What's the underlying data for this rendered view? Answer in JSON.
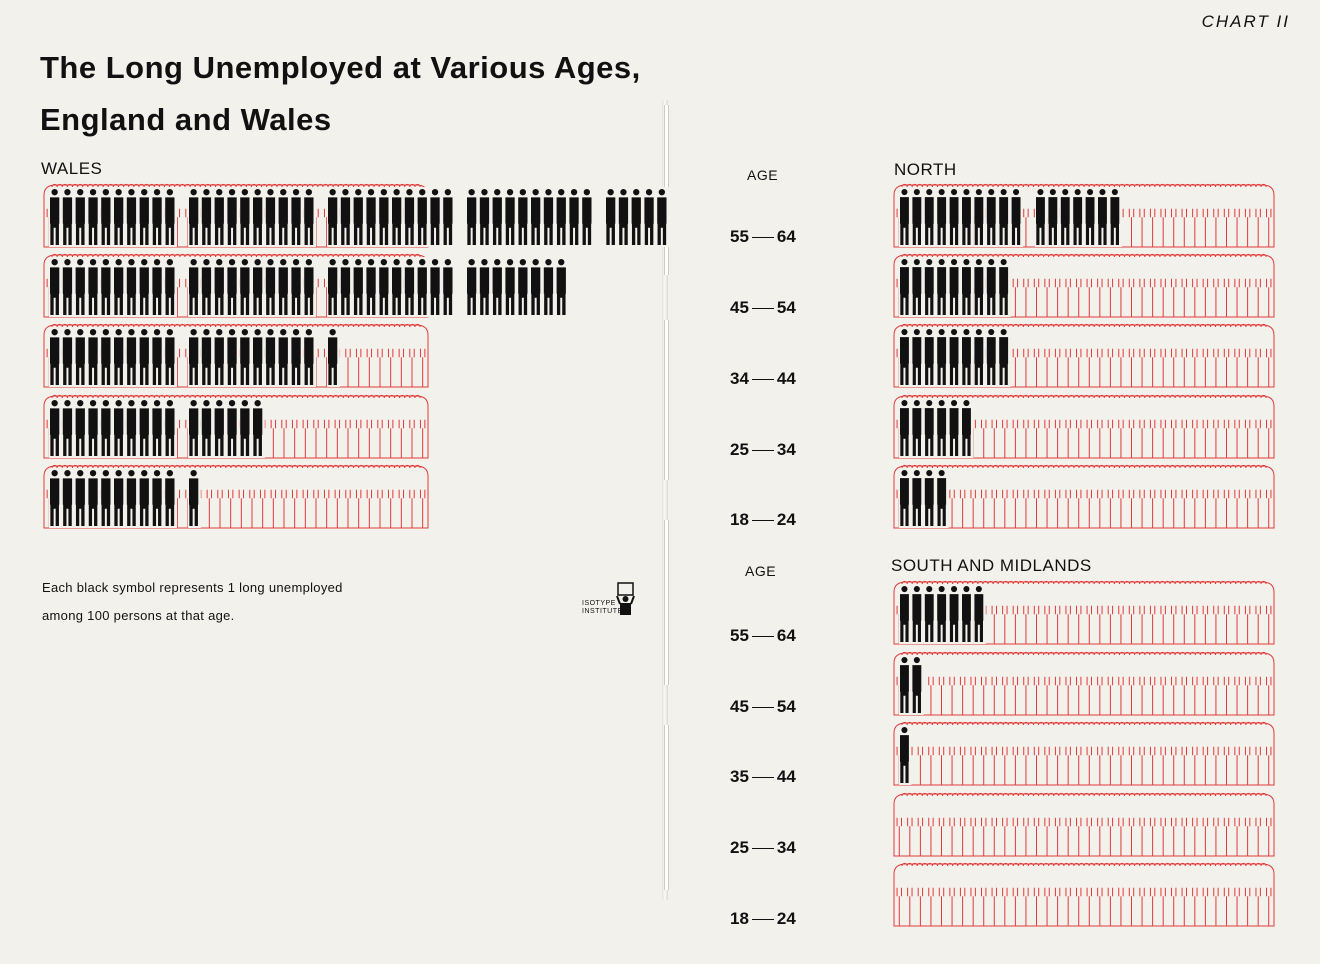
{
  "chart_label": "CHART II",
  "title_line1": "The Long Unemployed at Various Ages,",
  "title_line2": "England and Wales",
  "age_heading": "AGE",
  "age_heading_2": "AGE",
  "note_line1": "Each black symbol represents 1 long  unemployed",
  "note_line2": "among 100 persons at that age.",
  "logo_line1": "ISOTYPE",
  "logo_line2": "INSTITUTE",
  "colors": {
    "outline": "#e03a3a",
    "figure": "#111111",
    "paper": "#f3f1ec"
  },
  "chart_data": [
    {
      "type": "bar",
      "region": "WALES",
      "categories": [
        "55–64",
        "45–54",
        "34–44",
        "25–34",
        "18–24"
      ],
      "values": [
        45,
        38,
        21,
        16,
        11
      ],
      "unit": "long unemployed per 100 persons",
      "total_per_row": 100
    },
    {
      "type": "bar",
      "region": "NORTH",
      "categories": [
        "55–64",
        "45–54",
        "35–44",
        "25–34",
        "18–24"
      ],
      "values": [
        17,
        9,
        9,
        6,
        4
      ],
      "unit": "long unemployed per 100 persons",
      "total_per_row": 100
    },
    {
      "type": "bar",
      "region": "SOUTH AND MIDLANDS",
      "categories": [
        "55–64",
        "45–54",
        "35–44",
        "25–34",
        "18–24"
      ],
      "values": [
        7,
        2,
        1,
        0,
        0
      ],
      "unit": "long unemployed per 100 persons",
      "total_per_row": 100
    }
  ],
  "age_labels_upper": [
    {
      "from": "55",
      "to": "64"
    },
    {
      "from": "45",
      "to": "54"
    },
    {
      "from": "34",
      "to": "44"
    },
    {
      "from": "25",
      "to": "34"
    },
    {
      "from": "18",
      "to": "24"
    }
  ],
  "age_labels_lower": [
    {
      "from": "55",
      "to": "64"
    },
    {
      "from": "45",
      "to": "54"
    },
    {
      "from": "35",
      "to": "44"
    },
    {
      "from": "25",
      "to": "34"
    },
    {
      "from": "18",
      "to": "24"
    }
  ]
}
